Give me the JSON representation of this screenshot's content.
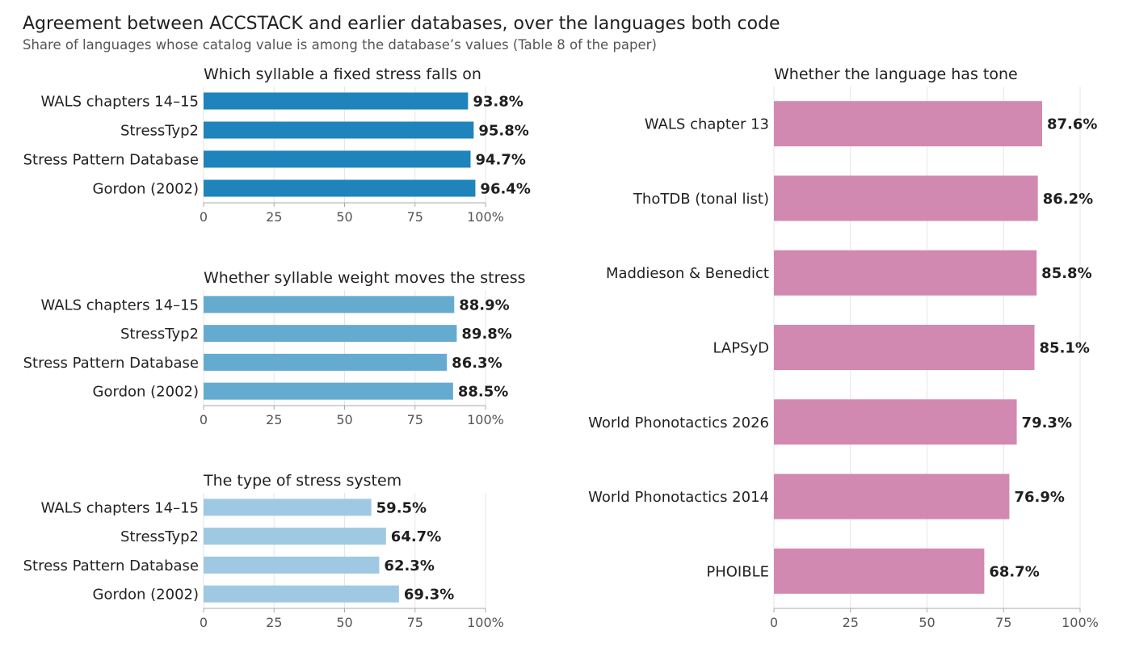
{
  "title": "Agreement between ACCSTACK and earlier databases, over the languages both code",
  "subtitle": "Share of languages whose catalog value is among the database’s values (Table 8 of the paper)",
  "chart_data": [
    {
      "type": "bar",
      "orientation": "horizontal",
      "title": "Which syllable a fixed stress falls on",
      "categories": [
        "WALS chapters 14–15",
        "StressTyp2",
        "Stress Pattern Database",
        "Gordon (2002)"
      ],
      "values": [
        93.8,
        95.8,
        94.7,
        96.4
      ],
      "value_labels": [
        "93.8%",
        "95.8%",
        "94.7%",
        "96.4%"
      ],
      "xlim": [
        0,
        100
      ],
      "x_ticks": [
        "0",
        "25",
        "50",
        "75",
        "100%"
      ],
      "color": "#1f84bb",
      "grid": "vertical"
    },
    {
      "type": "bar",
      "orientation": "horizontal",
      "title": "Whether syllable weight moves the stress",
      "categories": [
        "WALS chapters 14–15",
        "StressTyp2",
        "Stress Pattern Database",
        "Gordon (2002)"
      ],
      "values": [
        88.9,
        89.8,
        86.3,
        88.5
      ],
      "value_labels": [
        "88.9%",
        "89.8%",
        "86.3%",
        "88.5%"
      ],
      "xlim": [
        0,
        100
      ],
      "x_ticks": [
        "0",
        "25",
        "50",
        "75",
        "100%"
      ],
      "color": "#65abd0",
      "grid": "vertical"
    },
    {
      "type": "bar",
      "orientation": "horizontal",
      "title": "The type of stress system",
      "categories": [
        "WALS chapters 14–15",
        "StressTyp2",
        "Stress Pattern Database",
        "Gordon (2002)"
      ],
      "values": [
        59.5,
        64.7,
        62.3,
        69.3
      ],
      "value_labels": [
        "59.5%",
        "64.7%",
        "62.3%",
        "69.3%"
      ],
      "xlim": [
        0,
        100
      ],
      "x_ticks": [
        "0",
        "25",
        "50",
        "75",
        "100%"
      ],
      "color": "#9fc9e2",
      "grid": "vertical"
    },
    {
      "type": "bar",
      "orientation": "horizontal",
      "title": "Whether the language has tone",
      "categories": [
        "WALS chapter 13",
        "ThoTDB (tonal list)",
        "Maddieson & Benedict",
        "LAPSyD",
        "World Phonotactics 2026",
        "World Phonotactics 2014",
        "PHOIBLE"
      ],
      "values": [
        87.6,
        86.2,
        85.8,
        85.1,
        79.3,
        76.9,
        68.7
      ],
      "value_labels": [
        "87.6%",
        "86.2%",
        "85.8%",
        "85.1%",
        "79.3%",
        "76.9%",
        "68.7%"
      ],
      "xlim": [
        0,
        100
      ],
      "x_ticks": [
        "0",
        "25",
        "50",
        "75",
        "100%"
      ],
      "color": "#d289b1",
      "grid": "vertical"
    }
  ]
}
